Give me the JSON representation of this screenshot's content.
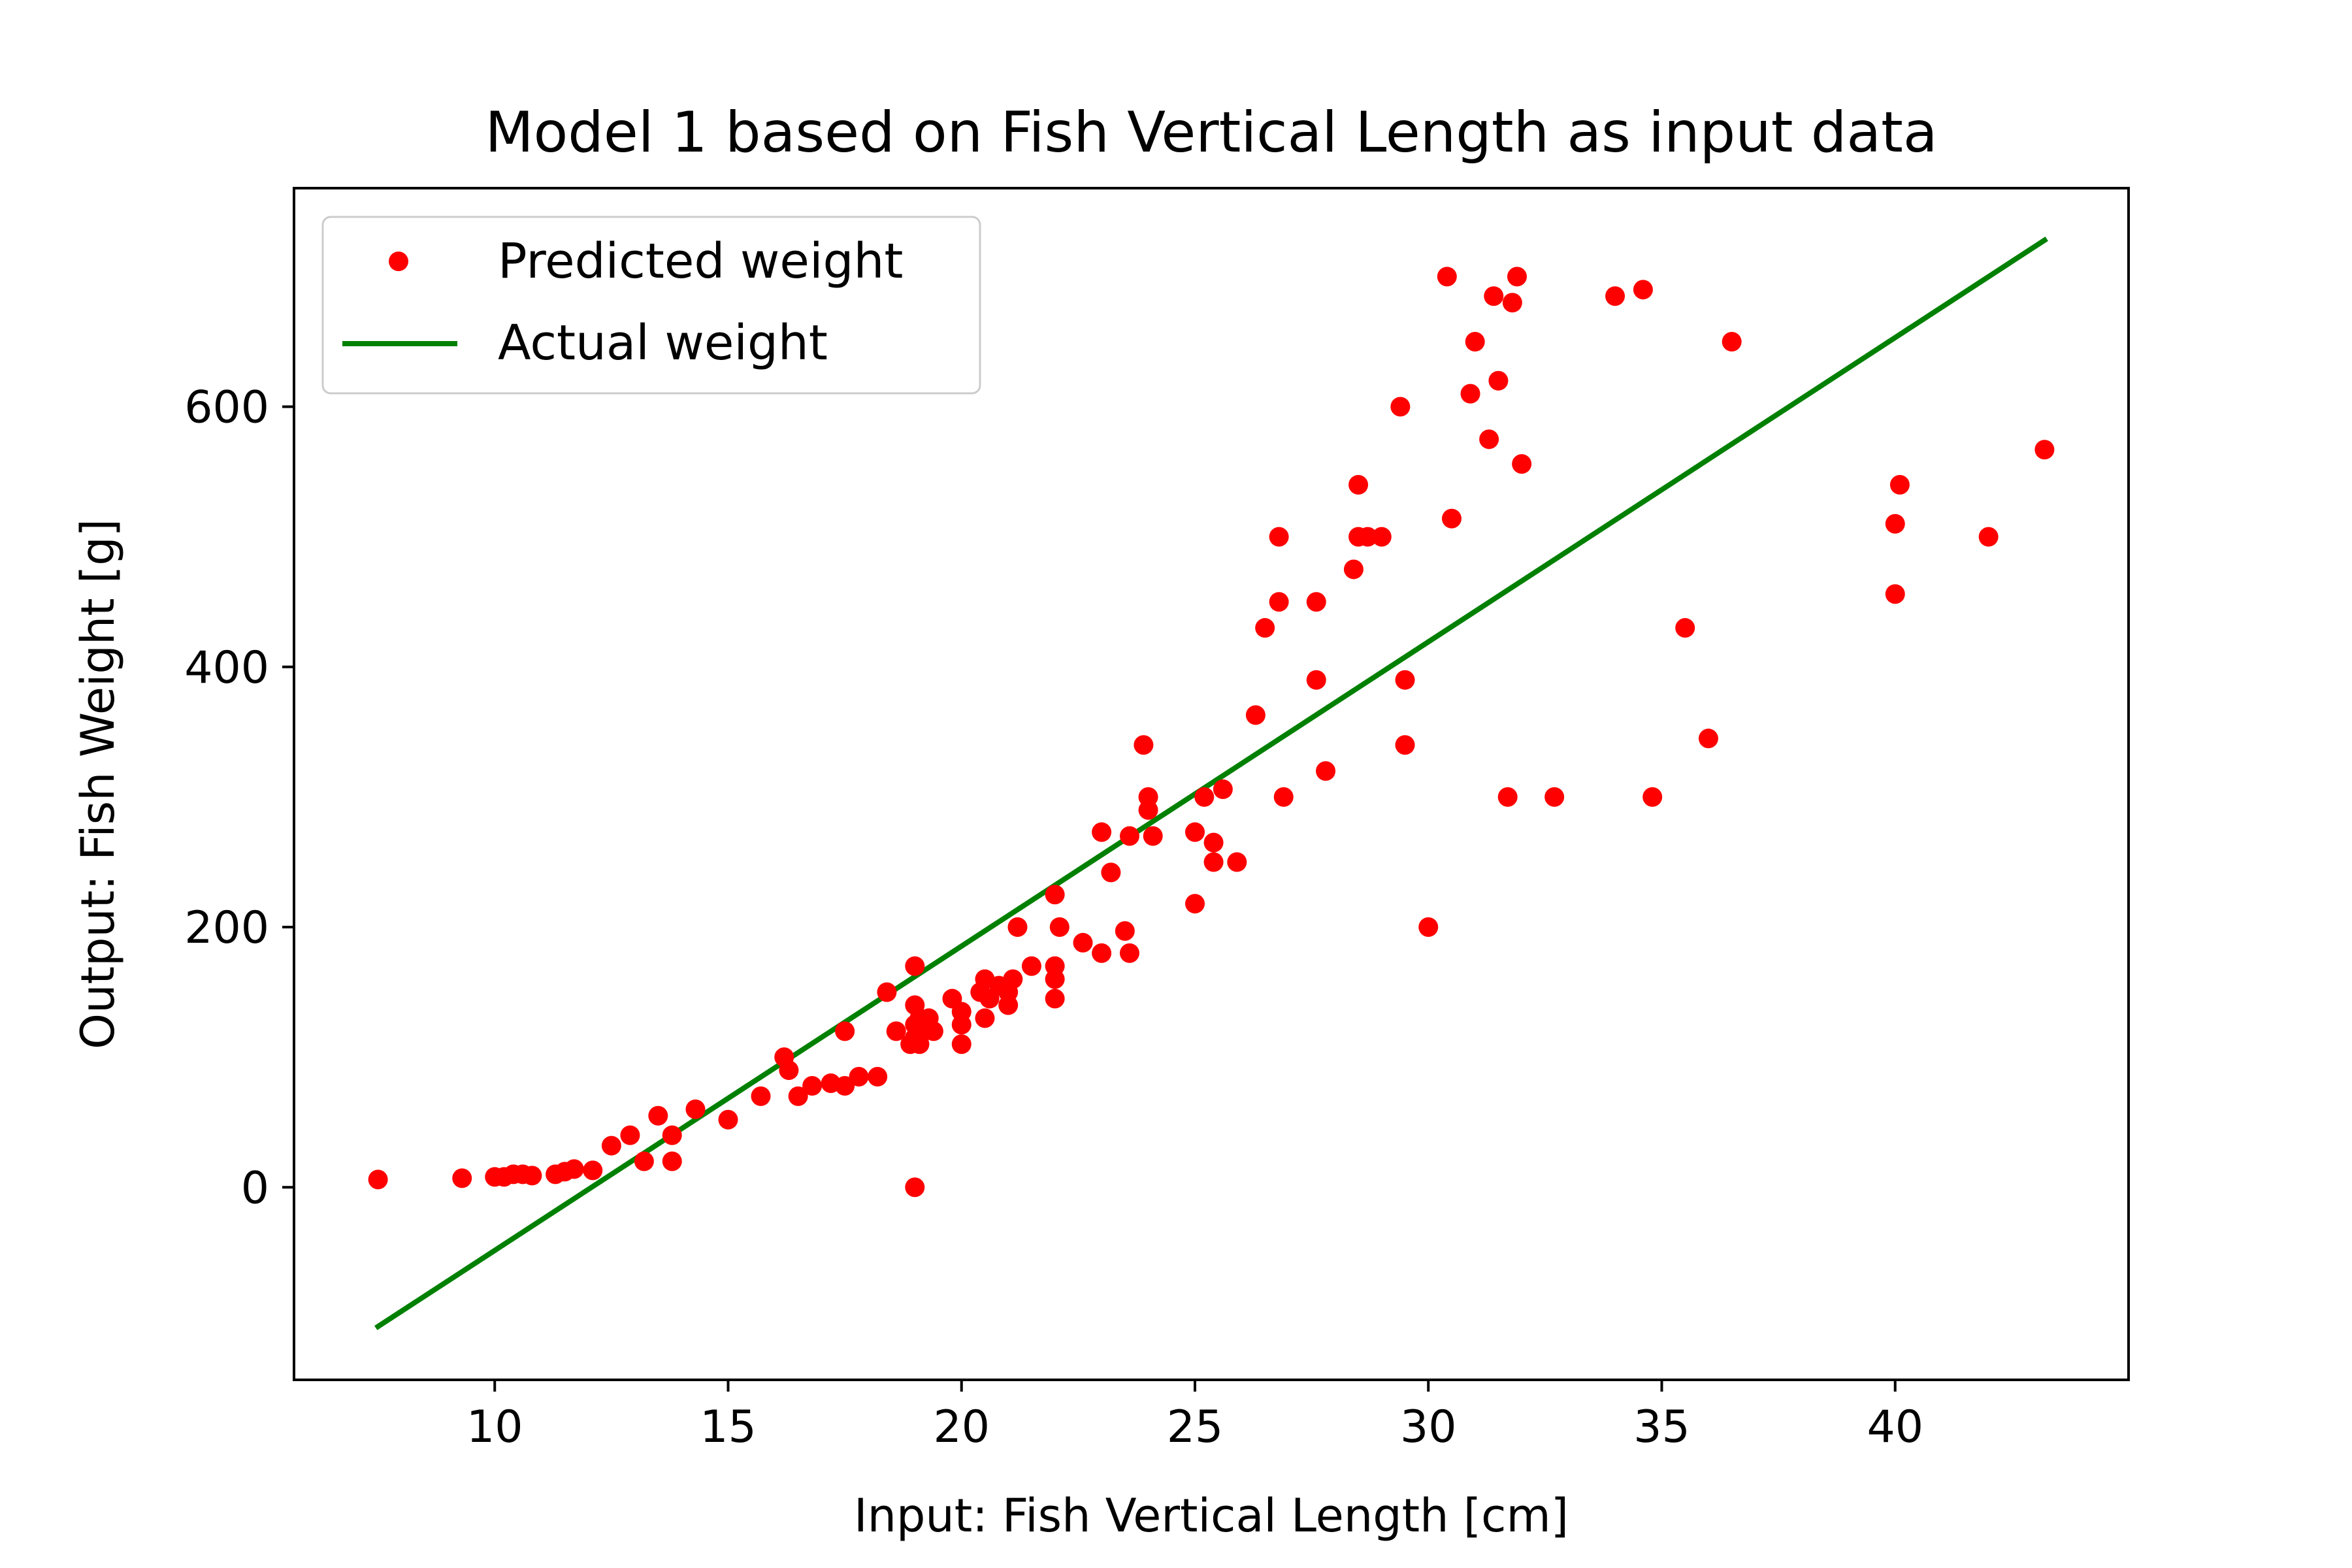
{
  "chart_data": {
    "type": "scatter",
    "title": "Model 1 based on Fish Vertical Length as input data",
    "xlabel": "Input: Fish Vertical Length [cm]",
    "ylabel": "Output: Fish Weight [g]",
    "xlim": [
      5.7,
      45.0
    ],
    "ylim": [
      -148,
      768
    ],
    "xticks": [
      10,
      15,
      20,
      25,
      30,
      35,
      40
    ],
    "yticks": [
      0,
      200,
      400,
      600
    ],
    "grid": false,
    "legend_position": "top-left",
    "colors": {
      "points": "#ff0000",
      "line": "#008000",
      "axes": "#000000"
    },
    "series": [
      {
        "name": "Predicted weight",
        "kind": "points",
        "color": "#ff0000",
        "points": [
          [
            7.5,
            6
          ],
          [
            9.3,
            7
          ],
          [
            10.0,
            8
          ],
          [
            10.2,
            8
          ],
          [
            10.4,
            10
          ],
          [
            10.6,
            10
          ],
          [
            10.8,
            9
          ],
          [
            11.3,
            10
          ],
          [
            11.5,
            12
          ],
          [
            11.7,
            14
          ],
          [
            12.1,
            13
          ],
          [
            12.5,
            32
          ],
          [
            12.9,
            40
          ],
          [
            13.2,
            20
          ],
          [
            13.5,
            55
          ],
          [
            13.8,
            20
          ],
          [
            13.8,
            40
          ],
          [
            14.3,
            60
          ],
          [
            15.0,
            52
          ],
          [
            15.7,
            70
          ],
          [
            16.2,
            100
          ],
          [
            16.3,
            90
          ],
          [
            16.5,
            70
          ],
          [
            16.8,
            78
          ],
          [
            17.2,
            80
          ],
          [
            17.5,
            78
          ],
          [
            17.5,
            120
          ],
          [
            17.8,
            85
          ],
          [
            18.2,
            85
          ],
          [
            18.4,
            150
          ],
          [
            18.6,
            120
          ],
          [
            18.9,
            110
          ],
          [
            19.0,
            170
          ],
          [
            19.0,
            140
          ],
          [
            19.0,
            125
          ],
          [
            19.0,
            115
          ],
          [
            19.1,
            110
          ],
          [
            19.1,
            130
          ],
          [
            19.2,
            120
          ],
          [
            19.3,
            130
          ],
          [
            19.4,
            120
          ],
          [
            19.8,
            145
          ],
          [
            20.0,
            135
          ],
          [
            20.0,
            125
          ],
          [
            20.0,
            110
          ],
          [
            20.4,
            150
          ],
          [
            20.5,
            160
          ],
          [
            20.5,
            130
          ],
          [
            20.6,
            145
          ],
          [
            20.8,
            155
          ],
          [
            21.0,
            150
          ],
          [
            21.0,
            140
          ],
          [
            21.1,
            160
          ],
          [
            21.2,
            200
          ],
          [
            21.5,
            170
          ],
          [
            22.0,
            225
          ],
          [
            22.0,
            170
          ],
          [
            22.0,
            160
          ],
          [
            22.0,
            145
          ],
          [
            22.1,
            200
          ],
          [
            22.6,
            188
          ],
          [
            23.0,
            273
          ],
          [
            23.0,
            180
          ],
          [
            23.2,
            242
          ],
          [
            23.5,
            197
          ],
          [
            23.6,
            270
          ],
          [
            23.6,
            180
          ],
          [
            23.9,
            340
          ],
          [
            24.0,
            300
          ],
          [
            24.0,
            290
          ],
          [
            24.1,
            270
          ],
          [
            25.0,
            273
          ],
          [
            25.0,
            218
          ],
          [
            25.2,
            300
          ],
          [
            25.4,
            265
          ],
          [
            25.4,
            250
          ],
          [
            25.6,
            306
          ],
          [
            25.9,
            250
          ],
          [
            26.3,
            363
          ],
          [
            26.5,
            430
          ],
          [
            26.8,
            500
          ],
          [
            26.8,
            450
          ],
          [
            26.9,
            300
          ],
          [
            27.6,
            450
          ],
          [
            27.6,
            390
          ],
          [
            27.8,
            320
          ],
          [
            28.4,
            475
          ],
          [
            28.5,
            540
          ],
          [
            28.5,
            500
          ],
          [
            28.7,
            500
          ],
          [
            29.0,
            500
          ],
          [
            29.4,
            600
          ],
          [
            29.5,
            390
          ],
          [
            29.5,
            340
          ],
          [
            30.0,
            200
          ],
          [
            30.4,
            700
          ],
          [
            30.5,
            514
          ],
          [
            30.9,
            610
          ],
          [
            31.0,
            650
          ],
          [
            31.3,
            575
          ],
          [
            31.4,
            685
          ],
          [
            31.5,
            620
          ],
          [
            31.7,
            300
          ],
          [
            31.8,
            680
          ],
          [
            31.9,
            700
          ],
          [
            32.0,
            556
          ],
          [
            32.7,
            300
          ],
          [
            34.0,
            685
          ],
          [
            34.6,
            690
          ],
          [
            34.8,
            300
          ],
          [
            35.5,
            430
          ],
          [
            36.0,
            345
          ],
          [
            36.5,
            650
          ],
          [
            40.0,
            510
          ],
          [
            40.0,
            456
          ],
          [
            40.1,
            540
          ],
          [
            42.0,
            500
          ],
          [
            43.2,
            567
          ],
          [
            19.0,
            0
          ]
        ]
      },
      {
        "name": "Actual weight",
        "kind": "line",
        "color": "#008000",
        "points": [
          [
            7.5,
            -107
          ],
          [
            43.2,
            728
          ]
        ]
      }
    ]
  }
}
